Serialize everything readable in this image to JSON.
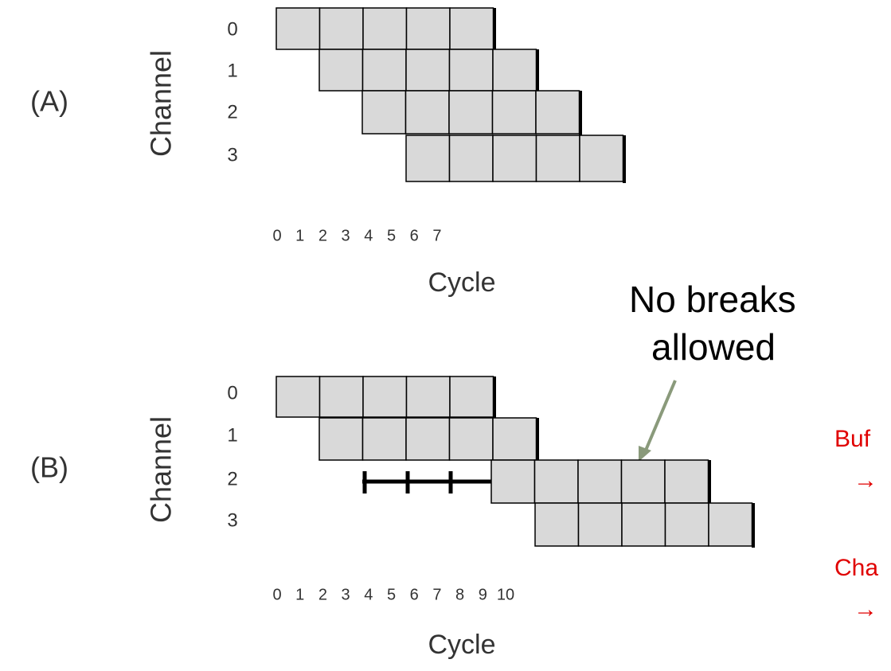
{
  "panels": [
    {
      "label": "(A)",
      "y_axis_label": "Channel",
      "channels": [
        0,
        1,
        2,
        3
      ],
      "x_axis_label": "Cycle",
      "cycles": [
        0,
        1,
        2,
        3,
        4,
        5,
        6,
        7
      ]
    },
    {
      "label": "(B)",
      "y_axis_label": "Channel",
      "channels": [
        0,
        1,
        2,
        3
      ],
      "x_axis_label": "Cycle",
      "cycles": [
        0,
        1,
        2,
        3,
        4,
        5,
        6,
        7,
        8,
        9,
        10
      ]
    }
  ],
  "annotation": {
    "line1": "No breaks",
    "line2": "allowed"
  },
  "notes": [
    {
      "line1": "Buf",
      "line2": "→"
    },
    {
      "line1": "Cha",
      "line2": "→"
    }
  ]
}
